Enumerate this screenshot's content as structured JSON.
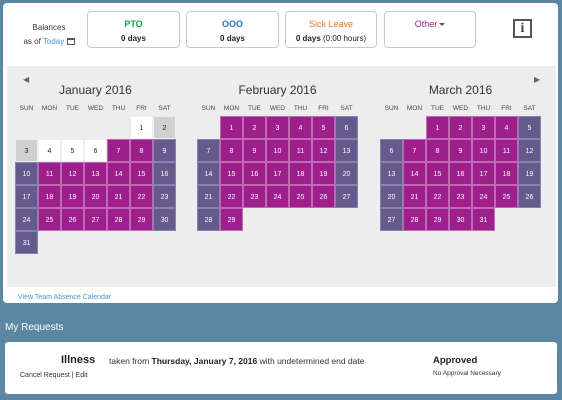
{
  "balances": {
    "label": "Balances",
    "as_of_prefix": "as of",
    "today_link": "Today",
    "items": [
      {
        "title": "PTO",
        "value": "0 days",
        "color": "#1a9e3a"
      },
      {
        "title": "OOO",
        "value": "0 days",
        "color": "#2a73c8"
      },
      {
        "title": "Sick Leave",
        "value": "0 days",
        "extra": "(0:00 hours)",
        "color": "#e87722"
      },
      {
        "title": "Other",
        "value": "",
        "color": "#9d1f8c"
      }
    ],
    "info_icon": "i"
  },
  "calendar": {
    "prev_arrow": "◀",
    "next_arrow": "▶",
    "dow": [
      "SUN",
      "MON",
      "TUE",
      "WED",
      "THU",
      "FRI",
      "SAT"
    ],
    "colors": {
      "requested_weekday": "#9d1f8c",
      "requested_weekend": "#645a8b",
      "past_weekend": "#d0d0d0"
    },
    "months": [
      {
        "title": "January 2016",
        "start": 5,
        "days": 31,
        "requested_from": 7
      },
      {
        "title": "February 2016",
        "start": 1,
        "days": 29,
        "requested_from": 1
      },
      {
        "title": "March 2016",
        "start": 2,
        "days": 31,
        "requested_from": 1
      }
    ],
    "view_link": "View Team Absence Calendar"
  },
  "requests": {
    "heading": "My Requests",
    "items": [
      {
        "type": "Illness",
        "taken_from": "taken from",
        "date": "Thursday, January 7, 2016",
        "tail": "with undetermined end date",
        "cancel": "Cancel Request",
        "separator": "|",
        "edit": "Edit",
        "status": "Approved",
        "note": "No Approval Necessary"
      }
    ]
  }
}
